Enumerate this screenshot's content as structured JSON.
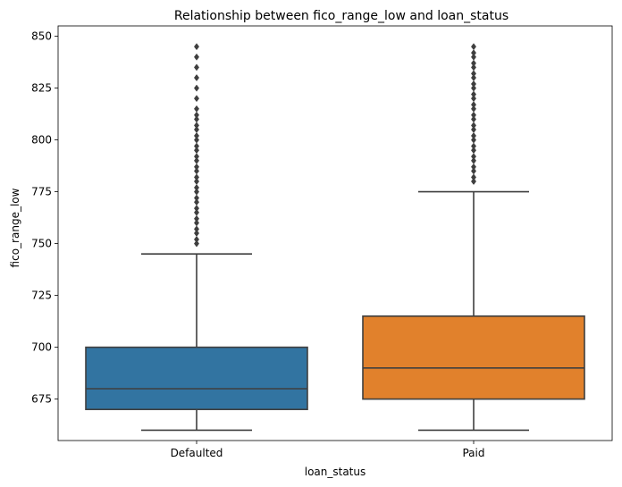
{
  "chart_data": {
    "type": "box",
    "title": "Relationship between fico_range_low and loan_status",
    "xlabel": "loan_status",
    "ylabel": "fico_range_low",
    "categories": [
      "Defaulted",
      "Paid"
    ],
    "ylim": [
      655,
      855
    ],
    "yticks": [
      675,
      700,
      725,
      750,
      775,
      800,
      825,
      850
    ],
    "grid": false,
    "boxes": [
      {
        "category": "Defaulted",
        "color": "#3274a1",
        "whisker_low": 660,
        "q1": 670,
        "median": 680,
        "q3": 700,
        "whisker_high": 745,
        "outliers": [
          750,
          752,
          755,
          757,
          760,
          762,
          765,
          767,
          770,
          772,
          775,
          777,
          780,
          782,
          785,
          787,
          790,
          792,
          795,
          797,
          800,
          802,
          805,
          807,
          810,
          812,
          815,
          820,
          825,
          830,
          835,
          840,
          845
        ]
      },
      {
        "category": "Paid",
        "color": "#e1812c",
        "whisker_low": 660,
        "q1": 675,
        "median": 690,
        "q3": 715,
        "whisker_high": 775,
        "outliers": [
          780,
          782,
          785,
          787,
          790,
          792,
          795,
          797,
          800,
          802,
          805,
          807,
          810,
          812,
          815,
          817,
          820,
          822,
          825,
          827,
          830,
          832,
          835,
          837,
          840,
          842,
          845
        ]
      }
    ]
  }
}
